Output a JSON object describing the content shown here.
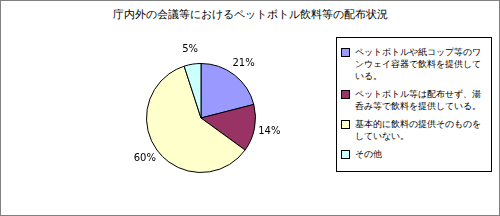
{
  "chart_data": {
    "type": "pie",
    "title": "庁内外の会議等におけるペットボトル飲料等の配布状況",
    "categories": [
      "ペットボトルや紙コップ等のワンウェイ容器で飲料を提供している。",
      "ペットボトル等は配布せず、湯呑み等で飲料を提供している。",
      "基本的に飲料の提供そのものをしていない。",
      "その他"
    ],
    "values": [
      21,
      14,
      60,
      5
    ],
    "value_labels": [
      "21%",
      "14%",
      "60%",
      "5%"
    ],
    "colors": [
      "#9999ff",
      "#993366",
      "#ffffcc",
      "#ccffff"
    ],
    "legend": "right",
    "data_labels": true
  }
}
